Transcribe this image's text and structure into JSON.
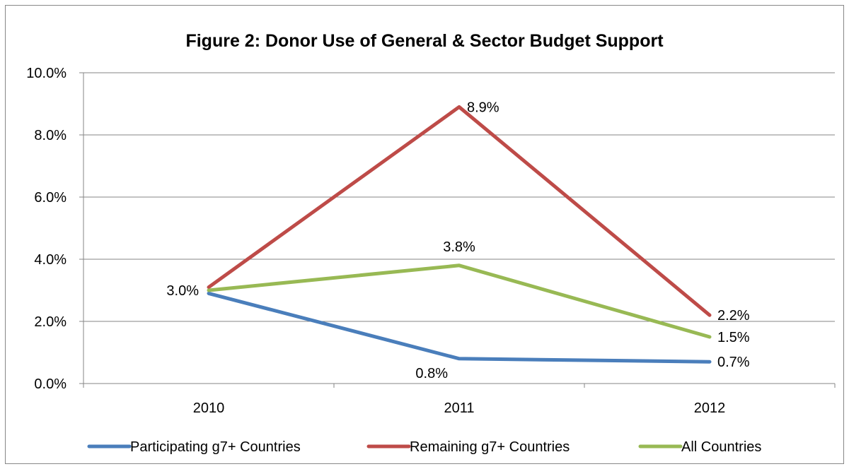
{
  "chart_data": {
    "type": "line",
    "title": "Figure 2: Donor Use of General & Sector Budget Support",
    "xlabel": "",
    "ylabel": "",
    "categories": [
      "2010",
      "2011",
      "2012"
    ],
    "ylim": [
      0,
      10
    ],
    "y_ticks": [
      0,
      2,
      4,
      6,
      8,
      10
    ],
    "y_tick_labels": [
      "0.0%",
      "2.0%",
      "4.0%",
      "6.0%",
      "8.0%",
      "10.0%"
    ],
    "grid": "horizontal",
    "legend_position": "bottom",
    "series": [
      {
        "name": "Participating g7+ Countries",
        "color": "#4a7ebb",
        "values": [
          2.9,
          0.8,
          0.7
        ],
        "labels": [
          "",
          "0.8%",
          "0.7%"
        ],
        "label_side": [
          "",
          "below-left",
          "right"
        ]
      },
      {
        "name": "Remaining g7+ Countries",
        "color": "#be4b48",
        "values": [
          3.1,
          8.9,
          2.2
        ],
        "labels": [
          "",
          "8.9%",
          "2.2%"
        ],
        "label_side": [
          "",
          "right",
          "right"
        ]
      },
      {
        "name": "All Countries",
        "color": "#98b954",
        "values": [
          3.0,
          3.8,
          1.5
        ],
        "labels": [
          "3.0%",
          "3.8%",
          "1.5%"
        ],
        "label_side": [
          "left",
          "above",
          "right"
        ]
      }
    ]
  }
}
